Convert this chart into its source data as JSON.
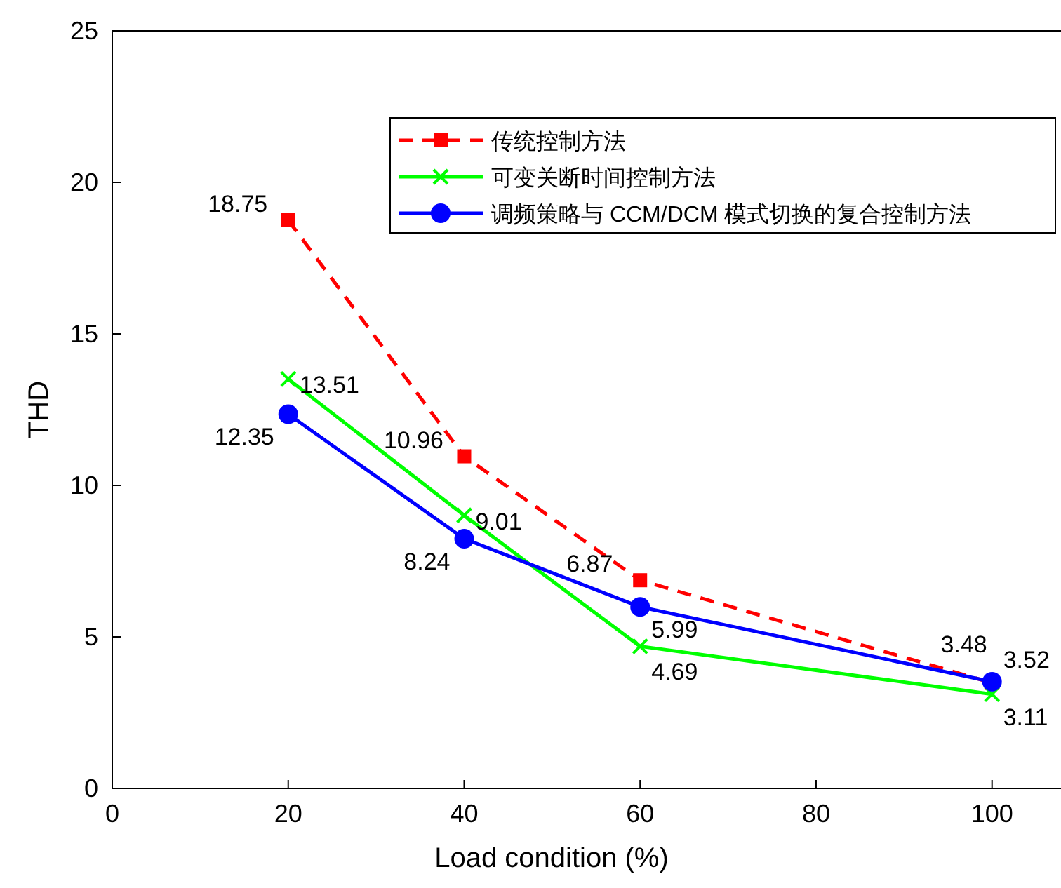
{
  "chart_data": {
    "type": "line",
    "xlabel": "Load condition (%)",
    "ylabel": "THD",
    "x": [
      20,
      40,
      60,
      100
    ],
    "xlim": [
      0,
      108
    ],
    "xticks": [
      0,
      20,
      40,
      60,
      80,
      100
    ],
    "ylim": [
      0,
      25
    ],
    "yticks": [
      0,
      5,
      10,
      15,
      20,
      25
    ],
    "grid": false,
    "legend": "top right",
    "data_labels": true,
    "series": [
      {
        "name": "传统控制方法",
        "color": "#ff0000",
        "values": [
          18.75,
          10.96,
          6.87,
          3.48
        ],
        "marker": "square",
        "line_style": "dashed"
      },
      {
        "name": "可变关断时间控制方法",
        "color": "#00ff00",
        "values": [
          13.51,
          9.01,
          4.69,
          3.11
        ],
        "marker": "cross",
        "line_style": "solid"
      },
      {
        "name": "调频策略与 CCM/DCM 模式切换的复合控制方法",
        "color": "#0000ff",
        "values": [
          12.35,
          8.24,
          5.99,
          3.52
        ],
        "marker": "circle",
        "line_style": "solid"
      }
    ]
  }
}
